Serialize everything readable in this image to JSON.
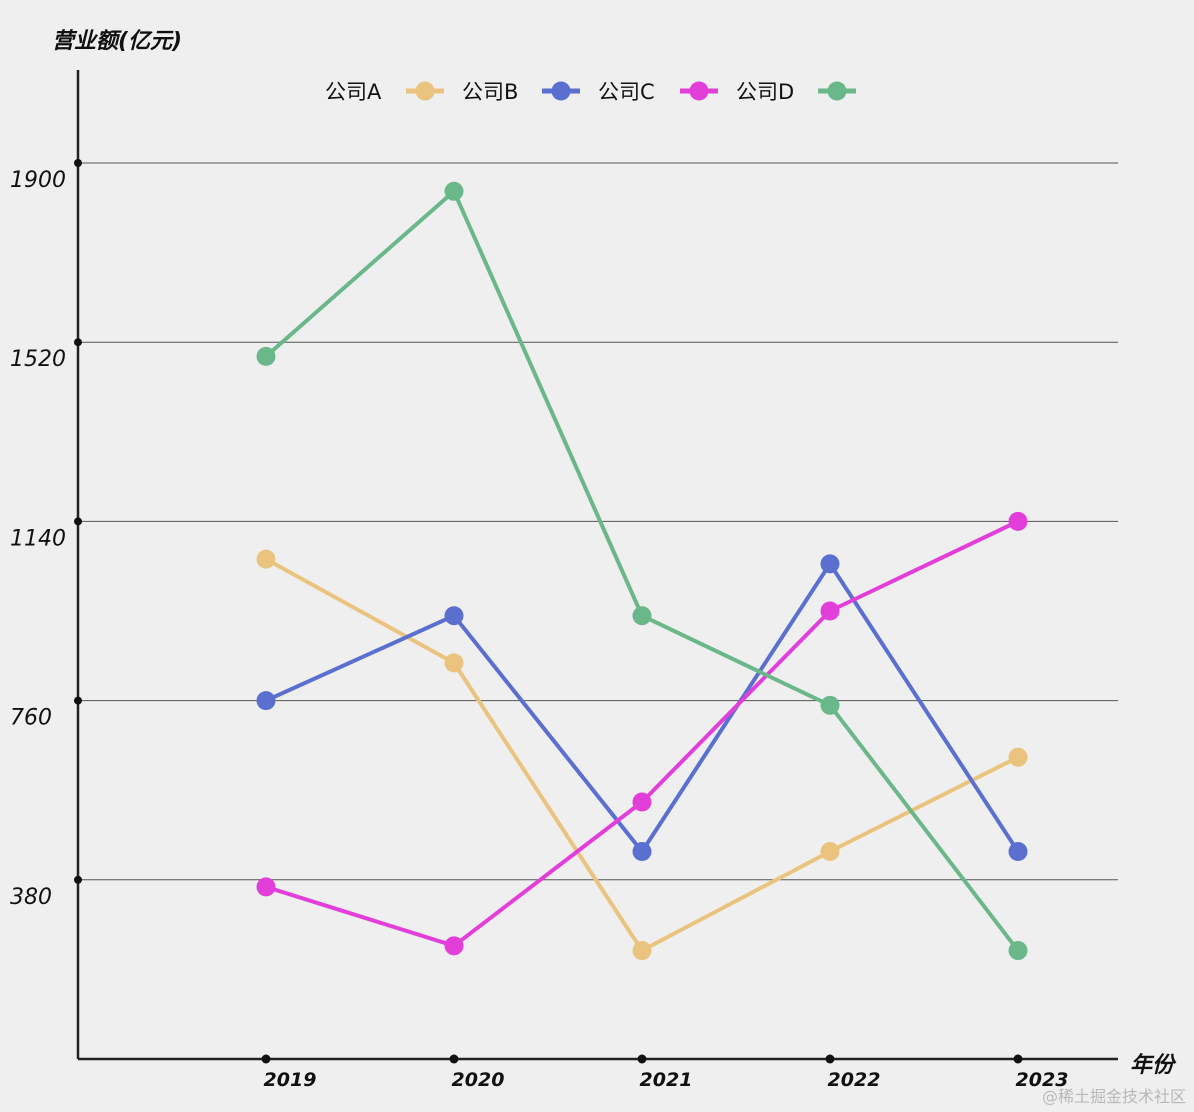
{
  "chart_data": {
    "type": "line",
    "ylabel": "营业额(亿元)",
    "xlabel": "年份",
    "categories": [
      "2019",
      "2020",
      "2021",
      "2022",
      "2023"
    ],
    "yticks": [
      380,
      760,
      1140,
      1520,
      1900
    ],
    "ylim": [
      0,
      2100
    ],
    "grid": true,
    "legend_position": "top",
    "series": [
      {
        "name": "公司A",
        "color": "#eac47e",
        "values": [
          1060,
          840,
          230,
          440,
          640
        ]
      },
      {
        "name": "公司B",
        "color": "#5a6fcf",
        "values": [
          760,
          940,
          440,
          1050,
          440
        ]
      },
      {
        "name": "公司C",
        "color": "#e23fda",
        "values": [
          365,
          240,
          545,
          950,
          1140
        ]
      },
      {
        "name": "公司D",
        "color": "#6ab78a",
        "values": [
          1490,
          1840,
          940,
          750,
          230
        ]
      }
    ]
  },
  "watermark": "@稀土掘金技术社区"
}
